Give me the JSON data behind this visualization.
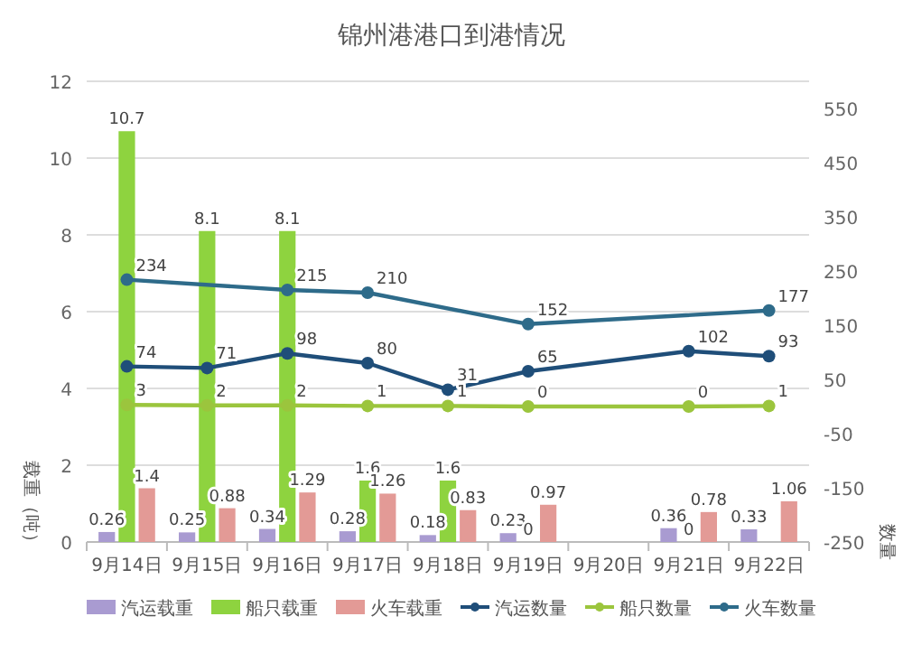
{
  "chart_data": {
    "type": "bar",
    "title": "锦州港港口到港情况",
    "ylabel": "载重（吨）",
    "y2label": "数量",
    "categories": [
      "9月14日",
      "9月15日",
      "9月16日",
      "9月17日",
      "9月18日",
      "9月19日",
      "9月20日",
      "9月21日",
      "9月22日"
    ],
    "series": [
      {
        "name": "汽运载重",
        "color": "#a99bd1",
        "values": [
          0.26,
          0.25,
          0.34,
          0.28,
          0.18,
          0.23,
          null,
          0.36,
          0.33
        ]
      },
      {
        "name": "船只载重",
        "color": "#8ed33f",
        "values": [
          10.7,
          8.1,
          8.1,
          1.6,
          1.6,
          0,
          null,
          0,
          null
        ]
      },
      {
        "name": "火车载重",
        "color": "#e39a96",
        "values": [
          1.4,
          0.88,
          1.29,
          1.26,
          0.83,
          0.97,
          null,
          0.78,
          1.06
        ]
      },
      {
        "name": "汽运数量",
        "type": "line",
        "axis": "y2",
        "color": "#1f4e79",
        "values": [
          74,
          71,
          98,
          80,
          31,
          65,
          null,
          102,
          93
        ]
      },
      {
        "name": "船只数量",
        "type": "line",
        "axis": "y2",
        "color": "#9bc53d",
        "values": [
          3,
          2,
          2,
          1,
          1,
          0,
          null,
          0,
          1
        ]
      },
      {
        "name": "火车数量",
        "type": "line",
        "axis": "y2",
        "color": "#2e6b8a",
        "values": [
          234,
          null,
          215,
          210,
          null,
          152,
          null,
          null,
          177
        ]
      }
    ],
    "ylim": [
      0,
      12
    ],
    "yticks": [
      0,
      2,
      4,
      6,
      8,
      10,
      12
    ],
    "y2lim": [
      -250,
      600
    ],
    "y2ticks": [
      -250,
      -150,
      -50,
      50,
      150,
      250,
      350,
      450,
      550
    ],
    "grid": "y",
    "legend": "bottom",
    "marker": "circle",
    "data_labels": true
  }
}
